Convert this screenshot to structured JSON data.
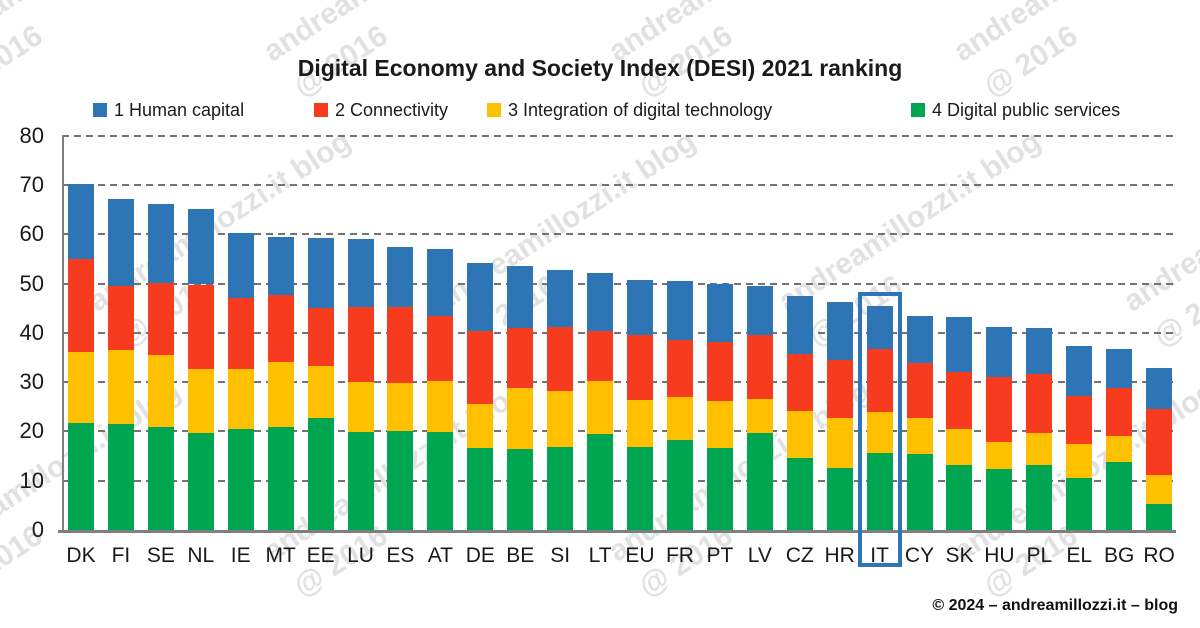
{
  "title": "Digital Economy and Society Index (DESI) 2021 ranking",
  "legend": [
    {
      "label": "1 Human capital",
      "color": "#2E75B6"
    },
    {
      "label": "2 Connectivity",
      "color": "#F73B1E"
    },
    {
      "label": "3 Integration of digital technology",
      "color": "#FFC000"
    },
    {
      "label": "4 Digital public services",
      "color": "#00A551"
    }
  ],
  "chart_data": {
    "type": "bar",
    "stacked": true,
    "title": "Digital Economy and Society Index (DESI) 2021 ranking",
    "categories": [
      "DK",
      "FI",
      "SE",
      "NL",
      "IE",
      "MT",
      "EE",
      "LU",
      "ES",
      "AT",
      "DE",
      "BE",
      "SI",
      "LT",
      "EU",
      "FR",
      "PT",
      "LV",
      "CZ",
      "HR",
      "IT",
      "CY",
      "SK",
      "HU",
      "PL",
      "EL",
      "BG",
      "RO"
    ],
    "series": [
      {
        "name": "4 Digital public services",
        "color": "#00A551",
        "values": [
          21.8,
          21.5,
          20.8,
          19.6,
          20.5,
          20.8,
          22.8,
          19.8,
          20.1,
          19.8,
          16.7,
          16.4,
          16.9,
          19.4,
          16.9,
          18.3,
          16.7,
          19.6,
          14.6,
          12.5,
          15.6,
          15.4,
          13.2,
          12.3,
          13.2,
          10.6,
          13.7,
          5.2
        ]
      },
      {
        "name": "3 Integration of digital technology",
        "color": "#FFC000",
        "values": [
          14.4,
          15.0,
          14.6,
          13.0,
          12.1,
          13.2,
          10.5,
          10.3,
          9.7,
          10.5,
          8.8,
          12.4,
          11.2,
          10.9,
          9.5,
          8.6,
          9.4,
          7.0,
          9.6,
          10.3,
          8.3,
          7.3,
          7.3,
          5.6,
          6.5,
          6.8,
          5.4,
          6.0
        ]
      },
      {
        "name": "2 Connectivity",
        "color": "#F73B1E",
        "values": [
          18.7,
          13.0,
          14.8,
          17.2,
          14.4,
          13.6,
          11.8,
          15.2,
          15.5,
          13.2,
          14.8,
          12.1,
          13.0,
          10.1,
          13.2,
          11.7,
          12.1,
          12.9,
          11.5,
          11.7,
          12.9,
          11.1,
          11.6,
          13.1,
          11.9,
          9.7,
          9.8,
          13.4
        ]
      },
      {
        "name": "1 Human capital",
        "color": "#2E75B6",
        "values": [
          15.2,
          17.6,
          15.9,
          15.3,
          13.3,
          11.9,
          14.2,
          13.7,
          12.1,
          13.4,
          13.8,
          12.7,
          11.7,
          11.8,
          11.1,
          12.0,
          11.6,
          10.0,
          11.7,
          11.7,
          8.7,
          9.6,
          11.1,
          10.2,
          9.3,
          10.2,
          7.9,
          8.3
        ]
      }
    ],
    "totals": [
      70.1,
      67.1,
      66.1,
      65.1,
      60.3,
      59.5,
      59.3,
      59.0,
      57.4,
      56.9,
      54.1,
      53.6,
      52.8,
      52.2,
      50.7,
      50.6,
      49.8,
      49.5,
      47.4,
      46.2,
      45.5,
      43.4,
      43.2,
      41.2,
      40.9,
      37.3,
      36.8,
      32.9
    ],
    "ylim": [
      0,
      80
    ],
    "yticks": [
      0,
      10,
      20,
      30,
      40,
      50,
      60,
      70,
      80
    ],
    "grid": "horizontal-dashed",
    "legend_position": "top",
    "highlighted_category": "IT",
    "highlight_color": "#2E75B6"
  },
  "watermark": {
    "line1": "andreamillozzi.it blog",
    "line2": "@ 2016"
  },
  "footer": "© 2024 – andreamillozzi.it – blog"
}
